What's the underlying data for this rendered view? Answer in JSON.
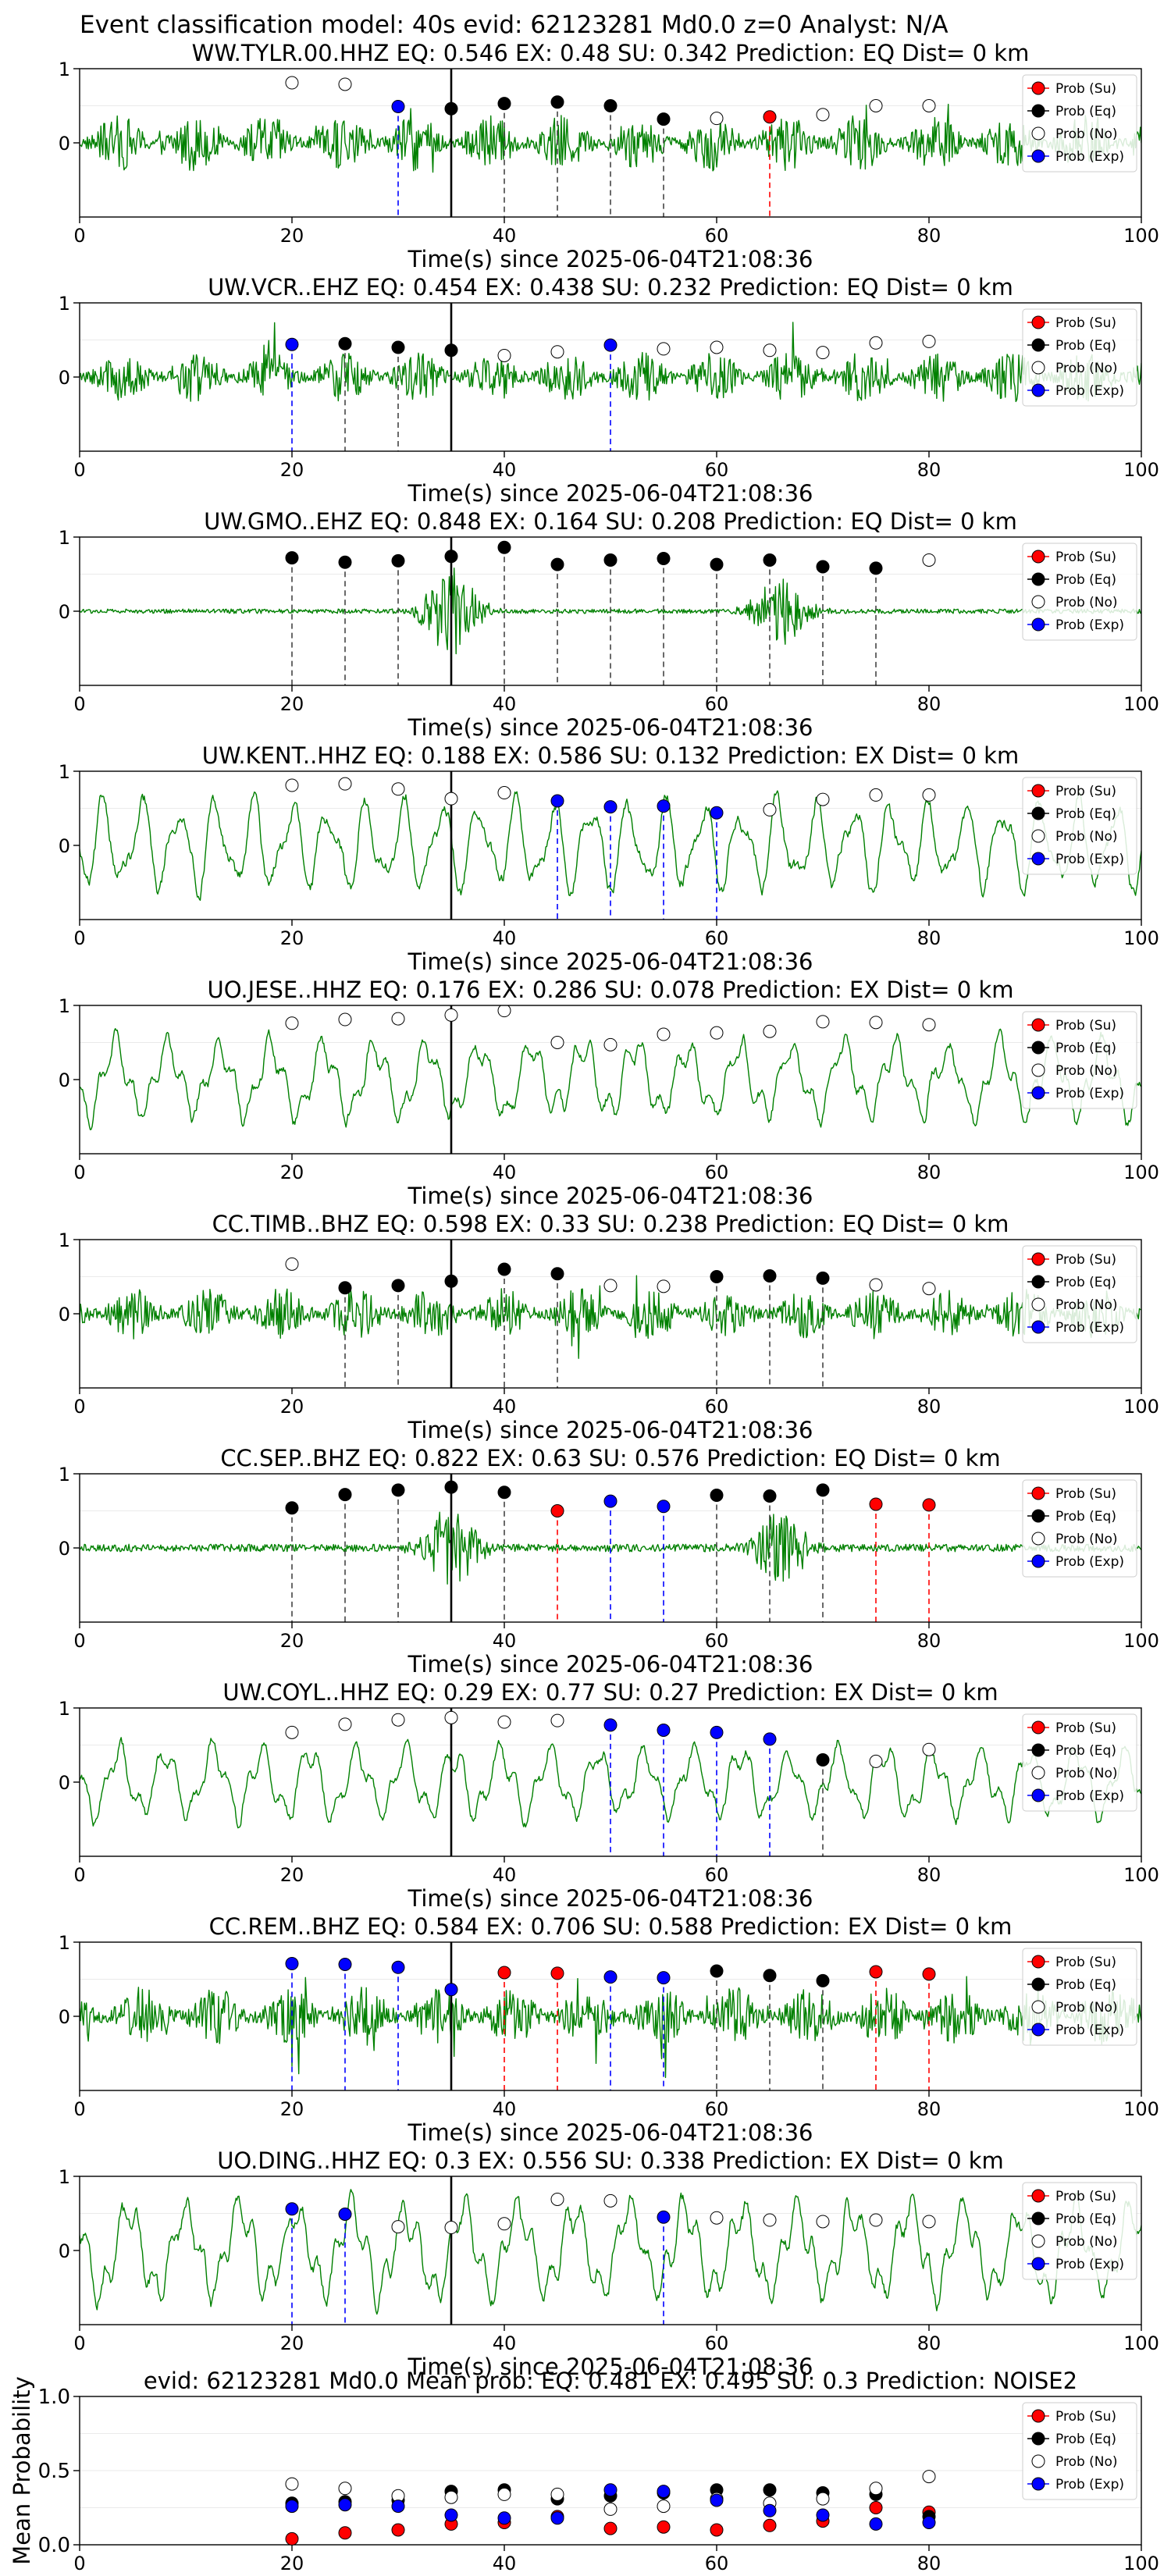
{
  "suptitle": "Event classification model: 40s evid: 62123281 Md0.0 z=0 Analyst: N/A",
  "xlabel": "Time(s) since 2025-06-04T21:08:36",
  "legend": [
    "Prob (Su)",
    "Prob (Eq)",
    "Prob (No)",
    "Prob (Exp)"
  ],
  "colors": {
    "su": "#ff0000",
    "eq": "#000000",
    "no": "#ffffff",
    "exp": "#0000ff",
    "waveform": "#008000",
    "grid": "#eaeaea"
  },
  "chart_data": [
    {
      "type": "line",
      "title": "WW.TYLR.00.HHZ   EQ: 0.546   EX: 0.48   SU: 0.342   Prediction: EQ    Dist= 0 km",
      "xlim": [
        0,
        100
      ],
      "ylim": [
        -1,
        1
      ],
      "x_ticks": [
        0,
        20,
        40,
        60,
        80,
        100
      ],
      "y_ticks": [
        0,
        1
      ],
      "event_line": 35,
      "amplitude": 0.38,
      "character": "noisy",
      "points": [
        {
          "x": 20,
          "y": 0.81,
          "class": "no"
        },
        {
          "x": 25,
          "y": 0.79,
          "class": "no"
        },
        {
          "x": 30,
          "y": 0.49,
          "class": "exp"
        },
        {
          "x": 35,
          "y": 0.46,
          "class": "eq"
        },
        {
          "x": 40,
          "y": 0.53,
          "class": "eq"
        },
        {
          "x": 45,
          "y": 0.55,
          "class": "eq"
        },
        {
          "x": 50,
          "y": 0.5,
          "class": "eq"
        },
        {
          "x": 55,
          "y": 0.32,
          "class": "eq"
        },
        {
          "x": 60,
          "y": 0.33,
          "class": "no"
        },
        {
          "x": 65,
          "y": 0.35,
          "class": "su"
        },
        {
          "x": 70,
          "y": 0.38,
          "class": "no"
        },
        {
          "x": 75,
          "y": 0.5,
          "class": "no"
        },
        {
          "x": 80,
          "y": 0.5,
          "class": "no"
        }
      ]
    },
    {
      "type": "line",
      "title": "UW.VCR..EHZ   EQ: 0.454   EX: 0.438   SU: 0.232   Prediction: EQ    Dist= 0 km",
      "xlim": [
        0,
        100
      ],
      "ylim": [
        -1,
        1
      ],
      "x_ticks": [
        0,
        20,
        40,
        60,
        80,
        100
      ],
      "y_ticks": [
        0,
        1
      ],
      "event_line": 35,
      "amplitude": 0.35,
      "character": "noisy",
      "points": [
        {
          "x": 20,
          "y": 0.44,
          "class": "exp"
        },
        {
          "x": 25,
          "y": 0.45,
          "class": "eq"
        },
        {
          "x": 30,
          "y": 0.4,
          "class": "eq"
        },
        {
          "x": 35,
          "y": 0.36,
          "class": "eq"
        },
        {
          "x": 40,
          "y": 0.29,
          "class": "no"
        },
        {
          "x": 45,
          "y": 0.34,
          "class": "no"
        },
        {
          "x": 50,
          "y": 0.43,
          "class": "exp"
        },
        {
          "x": 55,
          "y": 0.38,
          "class": "no"
        },
        {
          "x": 60,
          "y": 0.4,
          "class": "no"
        },
        {
          "x": 65,
          "y": 0.36,
          "class": "no"
        },
        {
          "x": 70,
          "y": 0.33,
          "class": "no"
        },
        {
          "x": 75,
          "y": 0.46,
          "class": "no"
        },
        {
          "x": 80,
          "y": 0.48,
          "class": "no"
        }
      ]
    },
    {
      "type": "line",
      "title": "UW.GMO..EHZ   EQ: 0.848   EX: 0.164   SU: 0.208   Prediction: EQ    Dist= 0 km",
      "xlim": [
        0,
        100
      ],
      "ylim": [
        -1,
        1
      ],
      "x_ticks": [
        0,
        20,
        40,
        60,
        80,
        100
      ],
      "y_ticks": [
        0,
        1
      ],
      "event_line": 35,
      "amplitude": 0.06,
      "character": "quiet",
      "points": [
        {
          "x": 20,
          "y": 0.72,
          "class": "eq"
        },
        {
          "x": 25,
          "y": 0.66,
          "class": "eq"
        },
        {
          "x": 30,
          "y": 0.68,
          "class": "eq"
        },
        {
          "x": 35,
          "y": 0.74,
          "class": "eq"
        },
        {
          "x": 40,
          "y": 0.86,
          "class": "eq"
        },
        {
          "x": 45,
          "y": 0.63,
          "class": "eq"
        },
        {
          "x": 50,
          "y": 0.69,
          "class": "eq"
        },
        {
          "x": 55,
          "y": 0.71,
          "class": "eq"
        },
        {
          "x": 60,
          "y": 0.63,
          "class": "eq"
        },
        {
          "x": 65,
          "y": 0.69,
          "class": "eq"
        },
        {
          "x": 70,
          "y": 0.6,
          "class": "eq"
        },
        {
          "x": 75,
          "y": 0.58,
          "class": "eq"
        },
        {
          "x": 80,
          "y": 0.69,
          "class": "no"
        }
      ]
    },
    {
      "type": "line",
      "title": "UW.KENT..HHZ   EQ: 0.188   EX: 0.586   SU: 0.132   Prediction: EX    Dist= 0 km",
      "xlim": [
        0,
        100
      ],
      "ylim": [
        -1,
        1
      ],
      "x_ticks": [
        0,
        20,
        40,
        60,
        80,
        100
      ],
      "y_ticks": [
        0,
        1
      ],
      "event_line": 35,
      "amplitude": 0.55,
      "character": "wavy",
      "points": [
        {
          "x": 20,
          "y": 0.81,
          "class": "no"
        },
        {
          "x": 25,
          "y": 0.83,
          "class": "no"
        },
        {
          "x": 30,
          "y": 0.76,
          "class": "no"
        },
        {
          "x": 35,
          "y": 0.63,
          "class": "no"
        },
        {
          "x": 40,
          "y": 0.71,
          "class": "no"
        },
        {
          "x": 45,
          "y": 0.6,
          "class": "exp"
        },
        {
          "x": 50,
          "y": 0.52,
          "class": "exp"
        },
        {
          "x": 55,
          "y": 0.53,
          "class": "exp"
        },
        {
          "x": 60,
          "y": 0.44,
          "class": "exp"
        },
        {
          "x": 65,
          "y": 0.48,
          "class": "no"
        },
        {
          "x": 70,
          "y": 0.62,
          "class": "no"
        },
        {
          "x": 75,
          "y": 0.68,
          "class": "no"
        },
        {
          "x": 80,
          "y": 0.68,
          "class": "no"
        }
      ]
    },
    {
      "type": "line",
      "title": "UO.JESE..HHZ   EQ: 0.176   EX: 0.286   SU: 0.078   Prediction: EX    Dist= 0 km",
      "xlim": [
        0,
        100
      ],
      "ylim": [
        -1,
        1
      ],
      "x_ticks": [
        0,
        20,
        40,
        60,
        80,
        100
      ],
      "y_ticks": [
        0,
        1
      ],
      "event_line": 35,
      "amplitude": 0.5,
      "character": "wavy",
      "points": [
        {
          "x": 20,
          "y": 0.76,
          "class": "no"
        },
        {
          "x": 25,
          "y": 0.81,
          "class": "no"
        },
        {
          "x": 30,
          "y": 0.82,
          "class": "no"
        },
        {
          "x": 35,
          "y": 0.87,
          "class": "no"
        },
        {
          "x": 40,
          "y": 0.93,
          "class": "no"
        },
        {
          "x": 45,
          "y": 0.5,
          "class": "no"
        },
        {
          "x": 50,
          "y": 0.47,
          "class": "no"
        },
        {
          "x": 55,
          "y": 0.61,
          "class": "no"
        },
        {
          "x": 60,
          "y": 0.63,
          "class": "no"
        },
        {
          "x": 65,
          "y": 0.65,
          "class": "no"
        },
        {
          "x": 70,
          "y": 0.78,
          "class": "no"
        },
        {
          "x": 75,
          "y": 0.77,
          "class": "no"
        },
        {
          "x": 80,
          "y": 0.74,
          "class": "no"
        }
      ]
    },
    {
      "type": "line",
      "title": "CC.TIMB..BHZ   EQ: 0.598   EX: 0.33   SU: 0.238   Prediction: EQ    Dist= 0 km",
      "xlim": [
        0,
        100
      ],
      "ylim": [
        -1,
        1
      ],
      "x_ticks": [
        0,
        20,
        40,
        60,
        80,
        100
      ],
      "y_ticks": [
        0,
        1
      ],
      "event_line": 35,
      "amplitude": 0.35,
      "character": "noisy",
      "points": [
        {
          "x": 20,
          "y": 0.67,
          "class": "no"
        },
        {
          "x": 25,
          "y": 0.35,
          "class": "eq"
        },
        {
          "x": 30,
          "y": 0.38,
          "class": "eq"
        },
        {
          "x": 35,
          "y": 0.44,
          "class": "eq"
        },
        {
          "x": 40,
          "y": 0.6,
          "class": "eq"
        },
        {
          "x": 45,
          "y": 0.54,
          "class": "eq"
        },
        {
          "x": 50,
          "y": 0.38,
          "class": "no"
        },
        {
          "x": 55,
          "y": 0.37,
          "class": "no"
        },
        {
          "x": 60,
          "y": 0.5,
          "class": "eq"
        },
        {
          "x": 65,
          "y": 0.51,
          "class": "eq"
        },
        {
          "x": 70,
          "y": 0.48,
          "class": "eq"
        },
        {
          "x": 75,
          "y": 0.39,
          "class": "no"
        },
        {
          "x": 80,
          "y": 0.34,
          "class": "no"
        }
      ]
    },
    {
      "type": "line",
      "title": "CC.SEP..BHZ   EQ: 0.822   EX: 0.63   SU: 0.576   Prediction: EQ    Dist= 0 km",
      "xlim": [
        0,
        100
      ],
      "ylim": [
        -1,
        1
      ],
      "x_ticks": [
        0,
        20,
        40,
        60,
        80,
        100
      ],
      "y_ticks": [
        0,
        1
      ],
      "event_line": 35,
      "amplitude": 0.1,
      "character": "quiet",
      "points": [
        {
          "x": 20,
          "y": 0.54,
          "class": "eq"
        },
        {
          "x": 25,
          "y": 0.72,
          "class": "eq"
        },
        {
          "x": 30,
          "y": 0.78,
          "class": "eq"
        },
        {
          "x": 35,
          "y": 0.82,
          "class": "eq"
        },
        {
          "x": 40,
          "y": 0.75,
          "class": "eq"
        },
        {
          "x": 45,
          "y": 0.5,
          "class": "su"
        },
        {
          "x": 50,
          "y": 0.63,
          "class": "exp"
        },
        {
          "x": 55,
          "y": 0.56,
          "class": "exp"
        },
        {
          "x": 60,
          "y": 0.71,
          "class": "eq"
        },
        {
          "x": 65,
          "y": 0.7,
          "class": "eq"
        },
        {
          "x": 70,
          "y": 0.78,
          "class": "eq"
        },
        {
          "x": 75,
          "y": 0.59,
          "class": "su"
        },
        {
          "x": 80,
          "y": 0.58,
          "class": "su"
        }
      ]
    },
    {
      "type": "line",
      "title": "UW.COYL..HHZ   EQ: 0.29   EX: 0.77   SU: 0.27   Prediction: EX    Dist= 0 km",
      "xlim": [
        0,
        100
      ],
      "ylim": [
        -1,
        1
      ],
      "x_ticks": [
        0,
        20,
        40,
        60,
        80,
        100
      ],
      "y_ticks": [
        0,
        1
      ],
      "event_line": 35,
      "amplitude": 0.45,
      "character": "wavy",
      "points": [
        {
          "x": 20,
          "y": 0.67,
          "class": "no"
        },
        {
          "x": 25,
          "y": 0.78,
          "class": "no"
        },
        {
          "x": 30,
          "y": 0.84,
          "class": "no"
        },
        {
          "x": 35,
          "y": 0.87,
          "class": "no"
        },
        {
          "x": 40,
          "y": 0.81,
          "class": "no"
        },
        {
          "x": 45,
          "y": 0.83,
          "class": "no"
        },
        {
          "x": 50,
          "y": 0.77,
          "class": "exp"
        },
        {
          "x": 55,
          "y": 0.7,
          "class": "exp"
        },
        {
          "x": 60,
          "y": 0.67,
          "class": "exp"
        },
        {
          "x": 65,
          "y": 0.58,
          "class": "exp"
        },
        {
          "x": 70,
          "y": 0.3,
          "class": "eq"
        },
        {
          "x": 75,
          "y": 0.28,
          "class": "no"
        },
        {
          "x": 80,
          "y": 0.44,
          "class": "no"
        }
      ]
    },
    {
      "type": "line",
      "title": "CC.REM..BHZ   EQ: 0.584   EX: 0.706   SU: 0.588   Prediction: EX    Dist= 0 km",
      "xlim": [
        0,
        100
      ],
      "ylim": [
        -1,
        1
      ],
      "x_ticks": [
        0,
        20,
        40,
        60,
        80,
        100
      ],
      "y_ticks": [
        0,
        1
      ],
      "event_line": 35,
      "amplitude": 0.4,
      "character": "noisy",
      "points": [
        {
          "x": 20,
          "y": 0.71,
          "class": "exp"
        },
        {
          "x": 25,
          "y": 0.7,
          "class": "exp"
        },
        {
          "x": 30,
          "y": 0.66,
          "class": "exp"
        },
        {
          "x": 35,
          "y": 0.36,
          "class": "exp"
        },
        {
          "x": 40,
          "y": 0.59,
          "class": "su"
        },
        {
          "x": 45,
          "y": 0.58,
          "class": "su"
        },
        {
          "x": 50,
          "y": 0.53,
          "class": "exp"
        },
        {
          "x": 55,
          "y": 0.52,
          "class": "exp"
        },
        {
          "x": 60,
          "y": 0.61,
          "class": "eq"
        },
        {
          "x": 65,
          "y": 0.55,
          "class": "eq"
        },
        {
          "x": 70,
          "y": 0.48,
          "class": "eq"
        },
        {
          "x": 75,
          "y": 0.6,
          "class": "su"
        },
        {
          "x": 80,
          "y": 0.57,
          "class": "su"
        }
      ]
    },
    {
      "type": "line",
      "title": "UO.DING..HHZ   EQ: 0.3   EX: 0.556   SU: 0.338   Prediction: EX    Dist= 0 km",
      "xlim": [
        0,
        100
      ],
      "ylim": [
        -1,
        1
      ],
      "x_ticks": [
        0,
        20,
        40,
        60,
        80,
        100
      ],
      "y_ticks": [
        0,
        1
      ],
      "event_line": 35,
      "amplitude": 0.6,
      "character": "wavy",
      "points": [
        {
          "x": 20,
          "y": 0.56,
          "class": "exp"
        },
        {
          "x": 25,
          "y": 0.49,
          "class": "exp"
        },
        {
          "x": 30,
          "y": 0.32,
          "class": "no"
        },
        {
          "x": 35,
          "y": 0.31,
          "class": "no"
        },
        {
          "x": 40,
          "y": 0.36,
          "class": "no"
        },
        {
          "x": 45,
          "y": 0.69,
          "class": "no"
        },
        {
          "x": 50,
          "y": 0.67,
          "class": "no"
        },
        {
          "x": 55,
          "y": 0.45,
          "class": "exp"
        },
        {
          "x": 60,
          "y": 0.44,
          "class": "no"
        },
        {
          "x": 65,
          "y": 0.41,
          "class": "no"
        },
        {
          "x": 70,
          "y": 0.39,
          "class": "no"
        },
        {
          "x": 75,
          "y": 0.41,
          "class": "no"
        },
        {
          "x": 80,
          "y": 0.39,
          "class": "no"
        }
      ]
    },
    {
      "type": "scatter",
      "title": "evid: 62123281   Md0.0   Mean prob:   EQ: 0.481   EX: 0.495   SU: 0.3   Prediction: NOISE2",
      "ylabel": "Mean Probability",
      "xlim": [
        0,
        100
      ],
      "ylim": [
        0,
        1
      ],
      "x_ticks": [
        0,
        20,
        40,
        60,
        80,
        100
      ],
      "y_ticks": [
        0.0,
        0.5,
        1.0
      ],
      "y_tick_labels": [
        "0.0",
        "0.5",
        "1.0"
      ],
      "x": [
        20,
        25,
        30,
        35,
        40,
        45,
        50,
        55,
        60,
        65,
        70,
        75,
        80
      ],
      "series": [
        {
          "name": "Prob (Su)",
          "class": "su",
          "values": [
            0.04,
            0.08,
            0.1,
            0.14,
            0.15,
            0.19,
            0.11,
            0.12,
            0.1,
            0.13,
            0.16,
            0.25,
            0.22
          ]
        },
        {
          "name": "Prob (Eq)",
          "class": "eq",
          "values": [
            0.28,
            0.29,
            0.3,
            0.36,
            0.37,
            0.31,
            0.33,
            0.35,
            0.37,
            0.37,
            0.35,
            0.34,
            0.19
          ]
        },
        {
          "name": "Prob (No)",
          "class": "no",
          "values": [
            0.41,
            0.38,
            0.33,
            0.32,
            0.34,
            0.34,
            0.24,
            0.26,
            0.31,
            0.28,
            0.31,
            0.38,
            0.46
          ]
        },
        {
          "name": "Prob (Exp)",
          "class": "exp",
          "values": [
            0.26,
            0.27,
            0.26,
            0.2,
            0.18,
            0.18,
            0.37,
            0.36,
            0.3,
            0.23,
            0.2,
            0.14,
            0.15
          ]
        }
      ]
    }
  ]
}
